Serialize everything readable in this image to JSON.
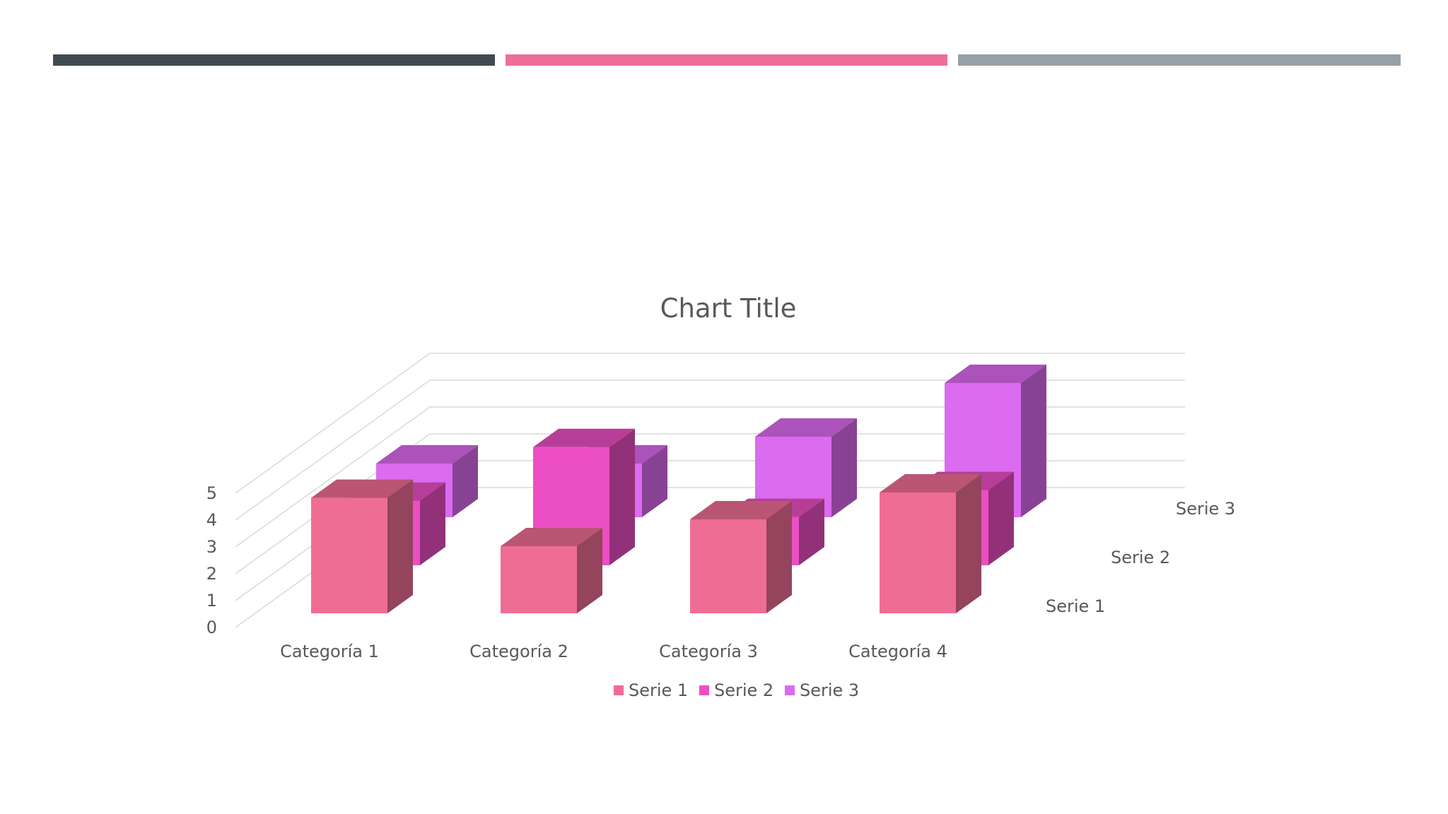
{
  "decor": {
    "bar_colors": [
      "#3f4b51",
      "#ec6e97",
      "#97a0a6"
    ]
  },
  "chart_data": {
    "type": "bar",
    "subtype": "3d-column",
    "title": "Chart Title",
    "categories": [
      "Categoría 1",
      "Categoría 2",
      "Categoría 3",
      "Categoría 4"
    ],
    "series": [
      {
        "name": "Serie 1",
        "values": [
          4.3,
          2.5,
          3.5,
          4.5
        ],
        "color": "#ef6d94"
      },
      {
        "name": "Serie 2",
        "values": [
          2.4,
          4.4,
          1.8,
          2.8
        ],
        "color": "#eb4fc3"
      },
      {
        "name": "Serie 3",
        "values": [
          2.0,
          2.0,
          3.0,
          5.0
        ],
        "color": "#db6bef"
      }
    ],
    "y_ticks": [
      "0",
      "1",
      "2",
      "3",
      "4",
      "5"
    ],
    "ylim": [
      0,
      5
    ],
    "grid": true,
    "legend": {
      "position": "bottom",
      "entries": [
        "Serie 1",
        "Serie 2",
        "Serie 3"
      ]
    }
  }
}
